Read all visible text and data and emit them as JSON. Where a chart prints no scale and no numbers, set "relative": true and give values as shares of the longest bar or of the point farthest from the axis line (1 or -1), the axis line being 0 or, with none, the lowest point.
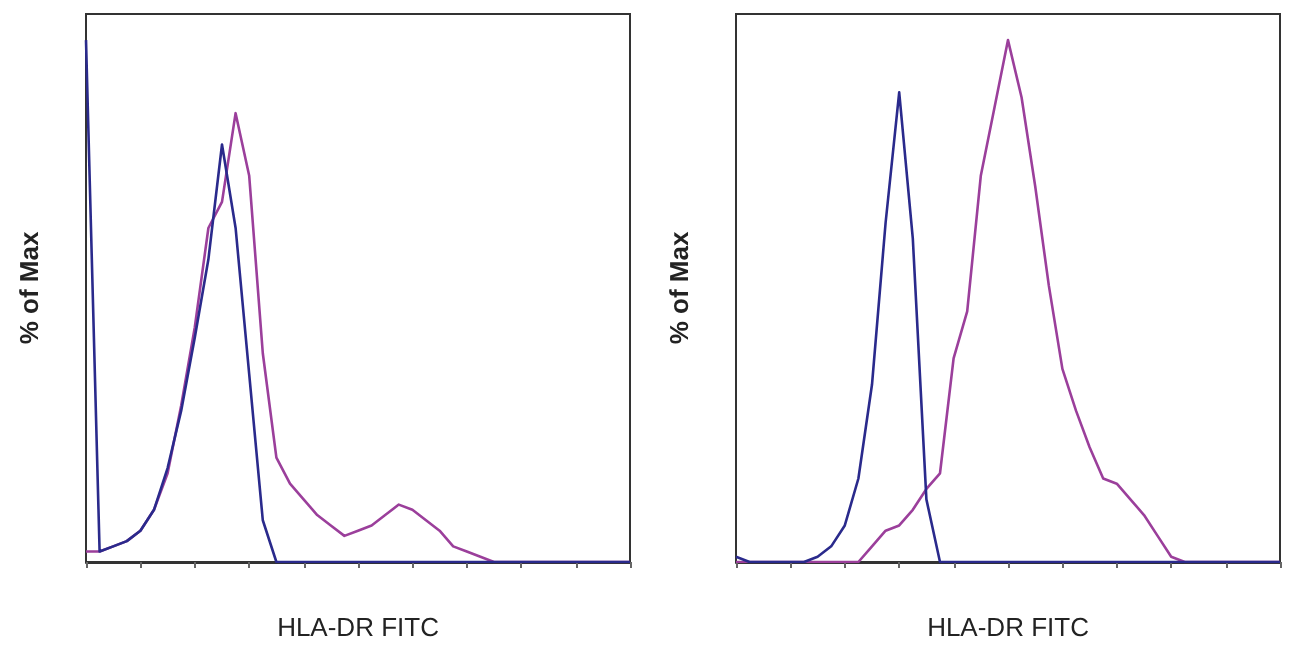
{
  "chart_data": [
    {
      "type": "line",
      "relative": true,
      "xlabel": "HLA-DR FITC",
      "ylabel": "% of Max",
      "marker": "none",
      "grid": false,
      "categories": [
        null,
        null,
        null,
        null,
        null,
        null,
        null,
        null,
        null,
        null,
        null,
        null,
        null,
        null,
        null,
        null,
        null,
        null,
        null,
        null,
        null,
        null,
        null,
        null,
        null,
        null,
        null,
        null,
        null,
        null,
        null,
        null,
        null,
        null,
        null,
        null,
        null,
        null,
        null,
        null,
        null
      ],
      "series": [
        {
          "color": "#9b3f9b",
          "values": [
            0.02,
            0.02,
            0.03,
            0.04,
            0.06,
            0.1,
            0.17,
            0.3,
            0.45,
            0.64,
            0.69,
            0.86,
            0.74,
            0.4,
            0.2,
            0.15,
            0.12,
            0.09,
            0.07,
            0.05,
            0.06,
            0.07,
            0.09,
            0.11,
            0.1,
            0.08,
            0.06,
            0.03,
            0.02,
            0.01,
            0,
            0,
            0,
            0,
            0,
            0,
            0,
            0,
            0,
            0,
            0
          ]
        },
        {
          "color": "#2a2a8c",
          "values": [
            1,
            0.02,
            0.03,
            0.04,
            0.06,
            0.1,
            0.18,
            0.29,
            0.43,
            0.58,
            0.8,
            0.64,
            0.36,
            0.08,
            0,
            0,
            0,
            0,
            0,
            0,
            0,
            0,
            0,
            0,
            0,
            0,
            0,
            0,
            0,
            0,
            0,
            0,
            0,
            0,
            0,
            0,
            0,
            0,
            0,
            0,
            0
          ]
        }
      ]
    },
    {
      "type": "line",
      "relative": true,
      "xlabel": "HLA-DR FITC",
      "ylabel": "% of Max",
      "marker": "none",
      "grid": false,
      "categories": [
        null,
        null,
        null,
        null,
        null,
        null,
        null,
        null,
        null,
        null,
        null,
        null,
        null,
        null,
        null,
        null,
        null,
        null,
        null,
        null,
        null,
        null,
        null,
        null,
        null,
        null,
        null,
        null,
        null,
        null,
        null,
        null,
        null,
        null,
        null,
        null,
        null,
        null,
        null,
        null,
        null
      ],
      "series": [
        {
          "color": "#9b3f9b",
          "values": [
            0,
            0,
            0,
            0,
            0,
            0,
            0,
            0,
            0,
            0,
            0.03,
            0.06,
            0.07,
            0.1,
            0.14,
            0.17,
            0.39,
            0.48,
            0.74,
            0.87,
            1,
            0.89,
            0.72,
            0.53,
            0.37,
            0.29,
            0.22,
            0.16,
            0.15,
            0.12,
            0.09,
            0.05,
            0.01,
            0,
            0,
            0,
            0,
            0,
            0,
            0,
            0
          ]
        },
        {
          "color": "#2a2a8c",
          "values": [
            0.01,
            0,
            0,
            0,
            0,
            0,
            0.01,
            0.03,
            0.07,
            0.16,
            0.34,
            0.65,
            0.9,
            0.62,
            0.12,
            0,
            0,
            0,
            0,
            0,
            0,
            0,
            0,
            0,
            0,
            0,
            0,
            0,
            0,
            0,
            0,
            0,
            0,
            0,
            0,
            0,
            0,
            0,
            0,
            0,
            0
          ]
        }
      ]
    }
  ]
}
